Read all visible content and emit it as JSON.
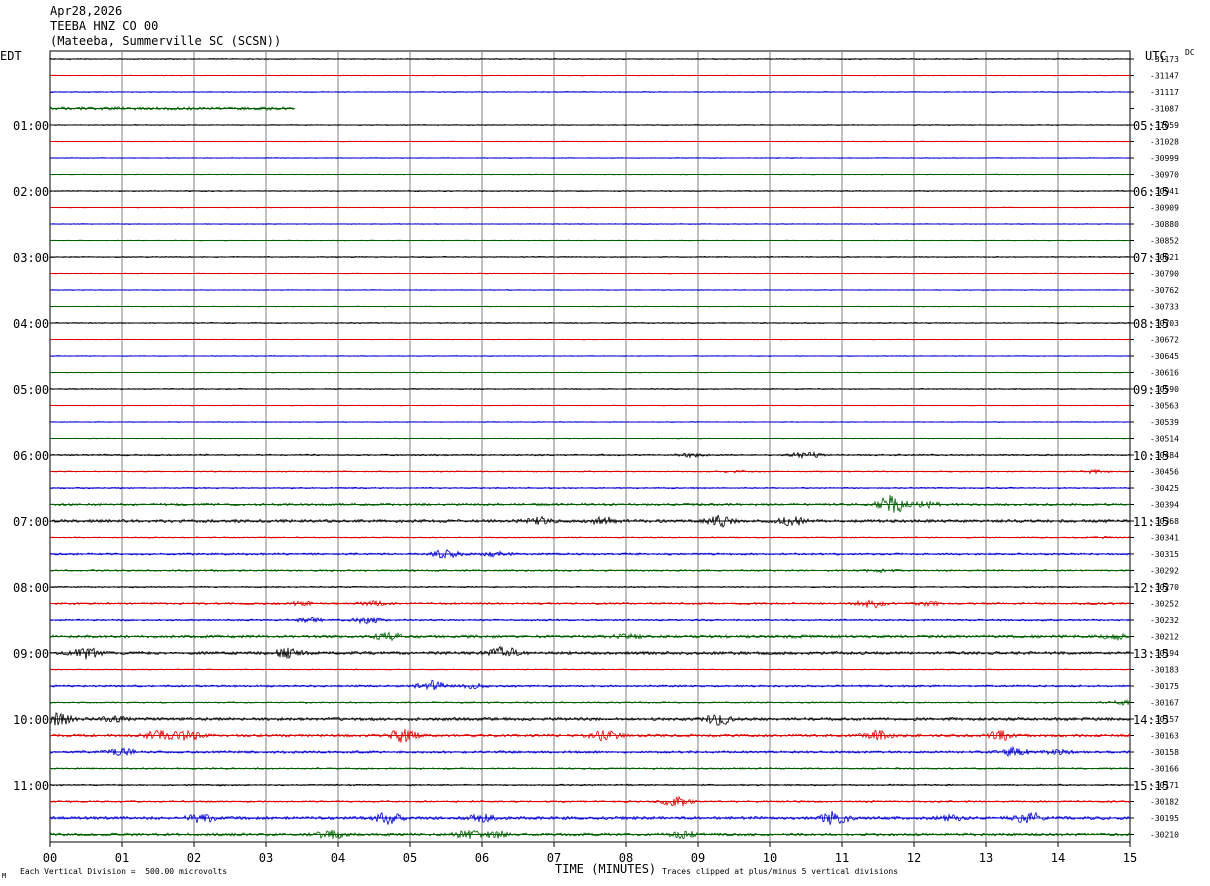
{
  "header": {
    "date": "Apr28,2026",
    "station": "TEEBA HNZ CO 00",
    "location": "(Mateeba, Summerville SC (SCSN))"
  },
  "left_tz": "EDT",
  "right_tz": "UTC",
  "dc_label": "DC",
  "footer": {
    "scale": "Each Vertical Division =  500.00 microvolts",
    "clip": "Traces clipped at plus/minus 5 vertical divisions",
    "corner_mark": "M"
  },
  "colors": {
    "black": "#000000",
    "red": "#e00000",
    "blue": "#0000d0",
    "green": "#006000",
    "grid": "#808080"
  },
  "chart_data": {
    "type": "line",
    "xlabel": "TIME (MINUTES)",
    "xlim": [
      0,
      15
    ],
    "x_ticks": [
      "00",
      "01",
      "02",
      "03",
      "04",
      "05",
      "06",
      "07",
      "08",
      "09",
      "10",
      "11",
      "12",
      "13",
      "14",
      "15"
    ],
    "left_hour_labels": [
      "01:00",
      "02:00",
      "03:00",
      "04:00",
      "05:00",
      "06:00",
      "07:00",
      "08:00",
      "09:00",
      "10:00",
      "11:00"
    ],
    "right_hour_labels": [
      "05:15",
      "06:15",
      "07:15",
      "08:15",
      "09:15",
      "10:15",
      "11:15",
      "12:15",
      "13:15",
      "14:15",
      "15:15"
    ],
    "dc_offsets": [
      "-31173",
      "-31147",
      "-31117",
      "-31087",
      "-31059",
      "-31028",
      "-30999",
      "-30970",
      "-30941",
      "-30909",
      "-30880",
      "-30852",
      "-30821",
      "-30790",
      "-30762",
      "-30733",
      "-30703",
      "-30672",
      "-30645",
      "-30616",
      "-30590",
      "-30563",
      "-30539",
      "-30514",
      "-30484",
      "-30456",
      "-30425",
      "-30394",
      "-30368",
      "-30341",
      "-30315",
      "-30292",
      "-30270",
      "-30252",
      "-30232",
      "-30212",
      "-30194",
      "-30183",
      "-30175",
      "-30167",
      "-30157",
      "-30163",
      "-30158",
      "-30166",
      "-30171",
      "-30182",
      "-30195",
      "-30210"
    ],
    "trace_colors": [
      "black",
      "red",
      "blue",
      "green"
    ],
    "rows": [
      {
        "start": 0,
        "end": 15,
        "noise": 0.6,
        "events": []
      },
      {
        "start": 0,
        "end": 15,
        "noise": 0.3,
        "events": []
      },
      {
        "start": 0,
        "end": 15,
        "noise": 0.5,
        "events": []
      },
      {
        "start": 0,
        "end": 3.4,
        "noise": 1.6,
        "events": []
      },
      {
        "start": 0,
        "end": 15,
        "noise": 0.5,
        "events": []
      },
      {
        "start": 0,
        "end": 15,
        "noise": 0.3,
        "events": []
      },
      {
        "start": 0,
        "end": 15,
        "noise": 0.4,
        "events": []
      },
      {
        "start": 0,
        "end": 15,
        "noise": 0.3,
        "events": []
      },
      {
        "start": 0,
        "end": 15,
        "noise": 0.6,
        "events": []
      },
      {
        "start": 0,
        "end": 15,
        "noise": 0.3,
        "events": []
      },
      {
        "start": 0,
        "end": 15,
        "noise": 0.4,
        "events": []
      },
      {
        "start": 0,
        "end": 15,
        "noise": 0.3,
        "events": []
      },
      {
        "start": 0,
        "end": 15,
        "noise": 0.6,
        "events": []
      },
      {
        "start": 0,
        "end": 15,
        "noise": 0.3,
        "events": []
      },
      {
        "start": 0,
        "end": 15,
        "noise": 0.4,
        "events": []
      },
      {
        "start": 0,
        "end": 15,
        "noise": 0.3,
        "events": []
      },
      {
        "start": 0,
        "end": 15,
        "noise": 0.6,
        "events": []
      },
      {
        "start": 0,
        "end": 15,
        "noise": 0.3,
        "events": []
      },
      {
        "start": 0,
        "end": 15,
        "noise": 0.4,
        "events": []
      },
      {
        "start": 0,
        "end": 15,
        "noise": 0.3,
        "events": []
      },
      {
        "start": 0,
        "end": 15,
        "noise": 0.6,
        "events": []
      },
      {
        "start": 0,
        "end": 15,
        "noise": 0.3,
        "events": []
      },
      {
        "start": 0,
        "end": 15,
        "noise": 0.4,
        "events": []
      },
      {
        "start": 0,
        "end": 15,
        "noise": 0.3,
        "events": []
      },
      {
        "start": 0,
        "end": 15,
        "noise": 0.8,
        "events": [
          [
            8.9,
            1.5
          ],
          [
            10.5,
            3
          ]
        ]
      },
      {
        "start": 0,
        "end": 15,
        "noise": 0.6,
        "events": [
          [
            9.5,
            1
          ],
          [
            14.5,
            1.5
          ]
        ]
      },
      {
        "start": 0,
        "end": 15,
        "noise": 0.7,
        "events": []
      },
      {
        "start": 0,
        "end": 15,
        "noise": 1.2,
        "events": [
          [
            11.7,
            9
          ],
          [
            12.2,
            3
          ]
        ]
      },
      {
        "start": 0,
        "end": 15,
        "noise": 1.5,
        "events": [
          [
            6.8,
            3
          ],
          [
            7.7,
            3.5
          ],
          [
            9.3,
            5
          ],
          [
            10.3,
            4
          ]
        ]
      },
      {
        "start": 0,
        "end": 15,
        "noise": 0.6,
        "events": [
          [
            14.6,
            1
          ]
        ]
      },
      {
        "start": 0,
        "end": 15,
        "noise": 1.0,
        "events": [
          [
            5.5,
            4
          ],
          [
            6.2,
            2
          ]
        ]
      },
      {
        "start": 0,
        "end": 15,
        "noise": 0.9,
        "events": [
          [
            11.5,
            1.5
          ]
        ]
      },
      {
        "start": 0,
        "end": 15,
        "noise": 0.7,
        "events": []
      },
      {
        "start": 0,
        "end": 15,
        "noise": 1.0,
        "events": [
          [
            3.5,
            1.5
          ],
          [
            4.5,
            2
          ],
          [
            11.4,
            5
          ],
          [
            12.2,
            1.5
          ]
        ]
      },
      {
        "start": 0,
        "end": 15,
        "noise": 0.9,
        "events": [
          [
            3.6,
            2
          ],
          [
            4.4,
            3
          ]
        ]
      },
      {
        "start": 0,
        "end": 15,
        "noise": 1.5,
        "events": [
          [
            4.7,
            3
          ],
          [
            8.0,
            2
          ],
          [
            14.8,
            2
          ]
        ]
      },
      {
        "start": 0,
        "end": 15,
        "noise": 1.5,
        "events": [
          [
            0.5,
            5
          ],
          [
            3.3,
            4
          ],
          [
            6.3,
            6
          ]
        ]
      },
      {
        "start": 0,
        "end": 15,
        "noise": 0.5,
        "events": []
      },
      {
        "start": 0,
        "end": 15,
        "noise": 1.0,
        "events": [
          [
            5.3,
            5
          ],
          [
            5.9,
            2
          ]
        ]
      },
      {
        "start": 0,
        "end": 15,
        "noise": 0.7,
        "events": [
          [
            14.9,
            2
          ]
        ]
      },
      {
        "start": 0,
        "end": 15,
        "noise": 1.5,
        "events": [
          [
            0.1,
            6
          ],
          [
            0.9,
            2
          ],
          [
            9.3,
            5
          ]
        ]
      },
      {
        "start": 0,
        "end": 15,
        "noise": 1.4,
        "events": [
          [
            1.5,
            4
          ],
          [
            1.9,
            5
          ],
          [
            4.9,
            6
          ],
          [
            7.7,
            5
          ],
          [
            11.5,
            4
          ],
          [
            13.2,
            4
          ]
        ]
      },
      {
        "start": 0,
        "end": 15,
        "noise": 1.2,
        "events": [
          [
            1.0,
            3
          ],
          [
            13.4,
            4
          ],
          [
            14.0,
            2
          ]
        ]
      },
      {
        "start": 0,
        "end": 15,
        "noise": 0.8,
        "events": []
      },
      {
        "start": 0,
        "end": 15,
        "noise": 0.8,
        "events": []
      },
      {
        "start": 0,
        "end": 15,
        "noise": 0.9,
        "events": [
          [
            8.7,
            5
          ]
        ]
      },
      {
        "start": 0,
        "end": 15,
        "noise": 1.5,
        "events": [
          [
            2.1,
            4
          ],
          [
            4.7,
            5
          ],
          [
            6.0,
            3
          ],
          [
            10.9,
            6
          ],
          [
            12.5,
            2
          ],
          [
            13.6,
            5
          ]
        ]
      },
      {
        "start": 0,
        "end": 15,
        "noise": 1.4,
        "events": [
          [
            3.9,
            4
          ],
          [
            5.8,
            4
          ],
          [
            6.2,
            3
          ],
          [
            8.8,
            3
          ]
        ]
      }
    ]
  }
}
